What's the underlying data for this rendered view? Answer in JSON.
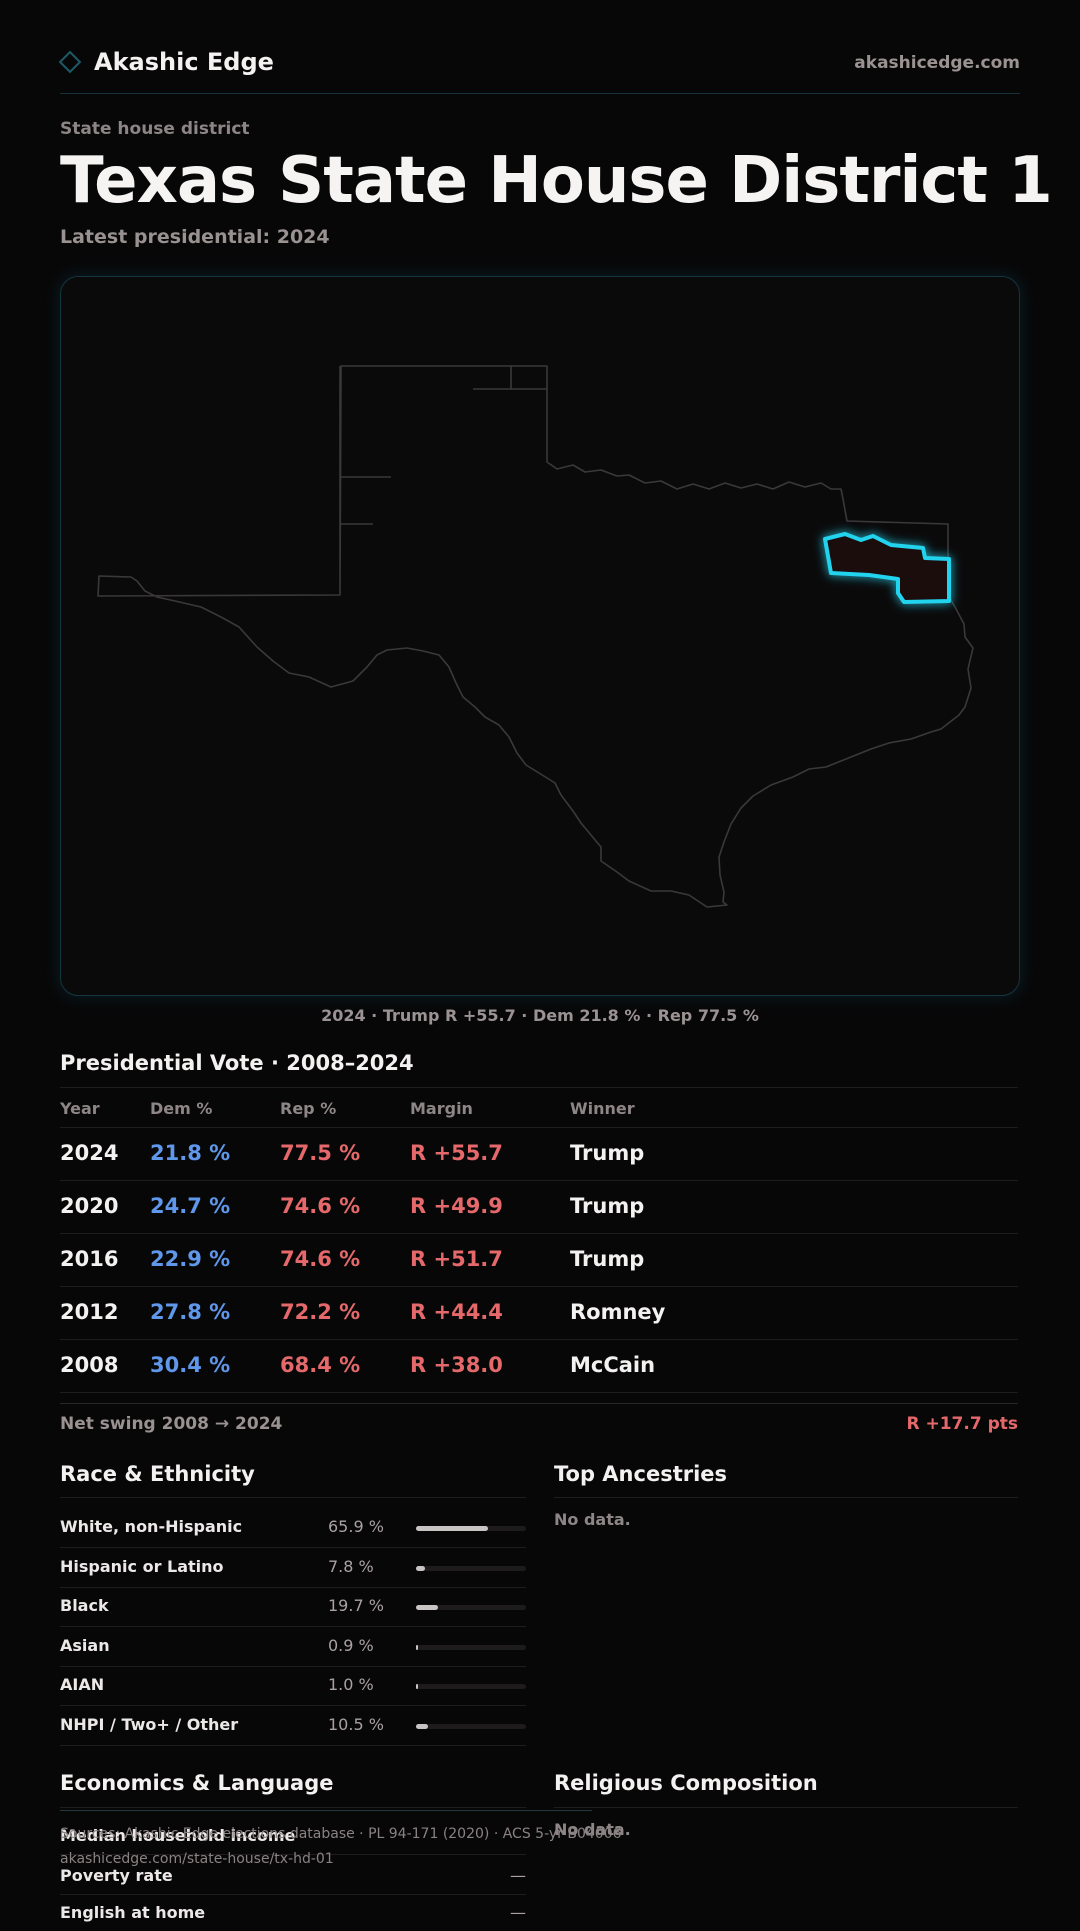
{
  "brand": {
    "name": "Akashic Edge",
    "site": "akashicedge.com"
  },
  "page": {
    "eyebrow": "State house district",
    "title_state": "Texas",
    "title_district": "State House District 1",
    "latest": "Latest presidential: 2024"
  },
  "map": {
    "caption": "2024 · Trump R +55.7 · Dem 21.8 % · Rep 77.5 %",
    "highlight_color": "#22d3ee",
    "outline_color": "#3b3839"
  },
  "presidential": {
    "title": "Presidential Vote · 2008–2024",
    "headers": [
      "Year",
      "Dem %",
      "Rep %",
      "Margin",
      "Winner"
    ],
    "rows": [
      {
        "year": "2024",
        "dem": "21.8 %",
        "rep": "77.5 %",
        "margin": "R +55.7",
        "winner": "Trump"
      },
      {
        "year": "2020",
        "dem": "24.7 %",
        "rep": "74.6 %",
        "margin": "R +49.9",
        "winner": "Trump"
      },
      {
        "year": "2016",
        "dem": "22.9 %",
        "rep": "74.6 %",
        "margin": "R +51.7",
        "winner": "Trump"
      },
      {
        "year": "2012",
        "dem": "27.8 %",
        "rep": "72.2 %",
        "margin": "R +44.4",
        "winner": "Romney"
      },
      {
        "year": "2008",
        "dem": "30.4 %",
        "rep": "68.4 %",
        "margin": "R +38.0",
        "winner": "McCain"
      }
    ],
    "swing_label": "Net swing 2008 → 2024",
    "swing_value": "R +17.7 pts",
    "dem_color": "#5f97ea",
    "rep_color": "#e5696b"
  },
  "race": {
    "title": "Race & Ethnicity",
    "rows": [
      {
        "label": "White, non-Hispanic",
        "pct": "65.9 %",
        "share": 0.659
      },
      {
        "label": "Hispanic or Latino",
        "pct": "7.8 %",
        "share": 0.078
      },
      {
        "label": "Black",
        "pct": "19.7 %",
        "share": 0.197
      },
      {
        "label": "Asian",
        "pct": "0.9 %",
        "share": 0.009
      },
      {
        "label": "AIAN",
        "pct": "1.0 %",
        "share": 0.01
      },
      {
        "label": "NHPI / Two+ / Other",
        "pct": "10.5 %",
        "share": 0.105
      }
    ]
  },
  "ancestries": {
    "title": "Top Ancestries",
    "empty": "No data."
  },
  "economics": {
    "title": "Economics & Language",
    "rows": [
      {
        "label": "Median household income",
        "value": ""
      },
      {
        "label": "Poverty rate",
        "value": "—"
      },
      {
        "label": "English at home",
        "value": "—"
      }
    ]
  },
  "religion": {
    "title": "Religious Composition",
    "empty": "No data."
  },
  "footer": {
    "sources": "Sources: Akashic Edge elections database · PL 94-171 (2020) · ACS 5-yr B04006",
    "url": "akashicedge.com/state-house/tx-hd-01"
  }
}
